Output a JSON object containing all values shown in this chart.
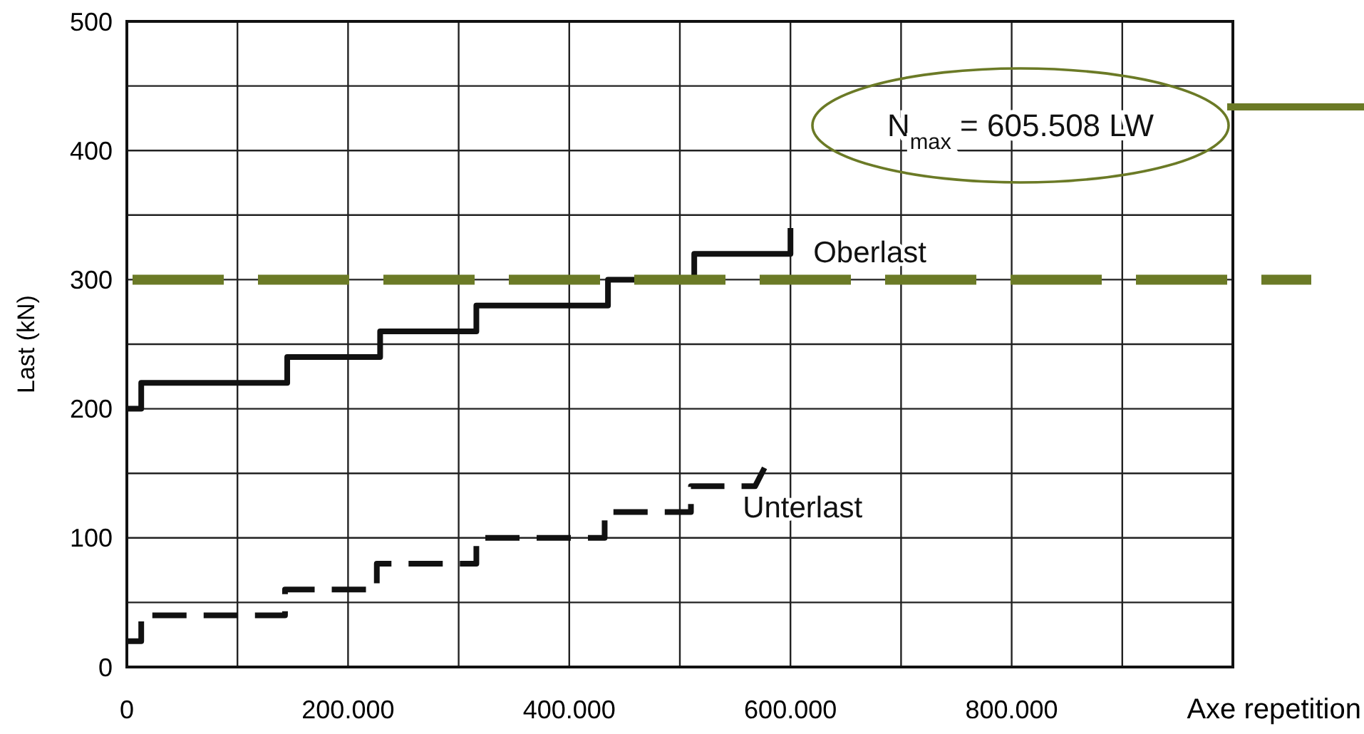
{
  "chart_data": {
    "type": "line",
    "xlabel": "Axe repetition",
    "ylabel": "Last (kN)",
    "xlim": [
      0,
      1000000
    ],
    "ylim": [
      0,
      500
    ],
    "xticks": [
      {
        "value": 0,
        "label": "0"
      },
      {
        "value": 100000,
        "label": null
      },
      {
        "value": 200000,
        "label": "200.000"
      },
      {
        "value": 300000,
        "label": null
      },
      {
        "value": 400000,
        "label": "400.000"
      },
      {
        "value": 500000,
        "label": null
      },
      {
        "value": 600000,
        "label": "600.000"
      },
      {
        "value": 700000,
        "label": null
      },
      {
        "value": 800000,
        "label": "800.000"
      },
      {
        "value": 900000,
        "label": null
      },
      {
        "value": 1000000,
        "label": null
      }
    ],
    "yticks": [
      0,
      {
        "value": 50,
        "label": null
      },
      100,
      {
        "value": 150,
        "label": null
      },
      200,
      {
        "value": 250,
        "label": null
      },
      300,
      {
        "value": 350,
        "label": null
      },
      400,
      {
        "value": 450,
        "label": null
      },
      500
    ],
    "grid": true,
    "marker": "none",
    "series": [
      {
        "name": "Oberlast",
        "color": "#111111",
        "line_style": "solid",
        "x": [
          0,
          13000,
          13000,
          145000,
          145000,
          229000,
          229000,
          316000,
          316000,
          435000,
          435000,
          513000,
          513000,
          600000,
          600000
        ],
        "values": [
          200,
          200,
          220,
          220,
          240,
          240,
          260,
          260,
          280,
          280,
          300,
          300,
          320,
          320,
          340
        ]
      },
      {
        "name": "Unterlast",
        "color": "#111111",
        "line_style": "dashed",
        "x": [
          0,
          13000,
          13000,
          143000,
          143000,
          226000,
          226000,
          316000,
          316000,
          432000,
          432000,
          510000,
          510000,
          568000,
          580000
        ],
        "values": [
          20,
          20,
          40,
          40,
          60,
          60,
          80,
          80,
          100,
          100,
          120,
          120,
          140,
          140,
          160
        ]
      }
    ],
    "ref_lines": [
      {
        "axis": "y",
        "value": 300,
        "color": "#6b7a26",
        "line_style": "dashed"
      }
    ],
    "annotations": [
      "N$_{max}$ = 605.508 LW"
    ]
  }
}
